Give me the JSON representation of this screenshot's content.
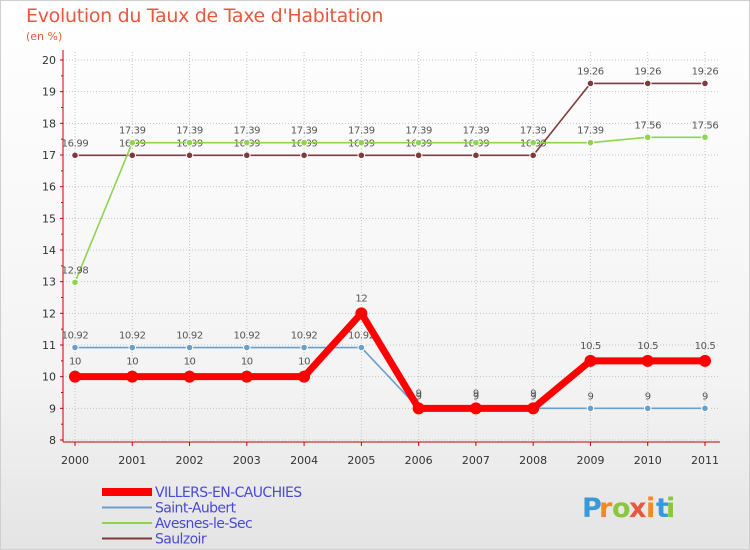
{
  "title": "Evolution du Taux de Taxe d'Habitation",
  "subtitle": "(en %)",
  "brand": {
    "letters": [
      "P",
      "r",
      "o",
      "x",
      "i",
      "t",
      "i"
    ],
    "colors": [
      "#3a9ad9",
      "#f08a24",
      "#8cc63f",
      "#e8583d",
      "#f08a24",
      "#3a9ad9",
      "#8cc63f"
    ]
  },
  "chart_data": {
    "type": "line",
    "title": "Evolution du Taux de Taxe d'Habitation",
    "ylabel": "(en %)",
    "xlabel": "",
    "ylim": [
      8,
      20
    ],
    "yticks": [
      "8",
      "9",
      "10",
      "11",
      "12",
      "13",
      "14",
      "15",
      "16",
      "17",
      "18",
      "19",
      "20"
    ],
    "categories": [
      "2000",
      "2001",
      "2002",
      "2003",
      "2004",
      "2005",
      "2006",
      "2007",
      "2008",
      "2009",
      "2010",
      "2011"
    ],
    "series": [
      {
        "name": "Saulzoir",
        "color": "#7f3b3b",
        "lineWidth": 1.6,
        "markerR": 3.3,
        "values": [
          16.99,
          16.99,
          16.99,
          16.99,
          16.99,
          16.99,
          16.99,
          16.99,
          16.99,
          19.26,
          19.26,
          19.26
        ],
        "labels": [
          "16.99",
          "16.99",
          "16.99",
          "16.99",
          "16.99",
          "16.99",
          "16.99",
          "16.99",
          "16.99",
          "19.26",
          "19.26",
          "19.26"
        ]
      },
      {
        "name": "Avesnes-le-Sec",
        "color": "#8ed44e",
        "lineWidth": 1.6,
        "markerR": 3.3,
        "values": [
          12.98,
          17.39,
          17.39,
          17.39,
          17.39,
          17.39,
          17.39,
          17.39,
          17.39,
          17.39,
          17.56,
          17.56
        ],
        "labels": [
          "12.98",
          "17.39",
          "17.39",
          "17.39",
          "17.39",
          "17.39",
          "17.39",
          "17.39",
          "17.39",
          "17.39",
          "17.56",
          "17.56"
        ]
      },
      {
        "name": "Saint-Aubert",
        "color": "#6a9fc9",
        "lineWidth": 1.6,
        "markerR": 3.3,
        "values": [
          10.92,
          10.92,
          10.92,
          10.92,
          10.92,
          10.92,
          9,
          9,
          9,
          9,
          9,
          9
        ],
        "labels": [
          "10.92",
          "10.92",
          "10.92",
          "10.92",
          "10.92",
          "10.92",
          "9",
          "9",
          "9",
          "9",
          "9",
          "9"
        ]
      },
      {
        "name": "VILLERS-EN-CAUCHIES",
        "color": "#ff0000",
        "lineWidth": 7,
        "markerR": 6,
        "values": [
          10,
          10,
          10,
          10,
          10,
          12,
          9,
          9,
          9,
          10.5,
          10.5,
          10.5
        ],
        "labels": [
          "10",
          "10",
          "10",
          "10",
          "10",
          "12",
          "9",
          "9",
          "9",
          "10.5",
          "10.5",
          "10.5"
        ]
      }
    ],
    "legend": [
      {
        "name": "VILLERS-EN-CAUCHIES",
        "color": "#ff0000",
        "textColor": "#4a4ad8",
        "thick": true
      },
      {
        "name": "Saint-Aubert",
        "color": "#6a9fc9",
        "textColor": "#4a4ad8",
        "thick": false
      },
      {
        "name": "Avesnes-le-Sec",
        "color": "#8ed44e",
        "textColor": "#4a4ad8",
        "thick": false
      },
      {
        "name": "Saulzoir",
        "color": "#7f3b3b",
        "textColor": "#4a4ad8",
        "thick": false
      }
    ]
  }
}
